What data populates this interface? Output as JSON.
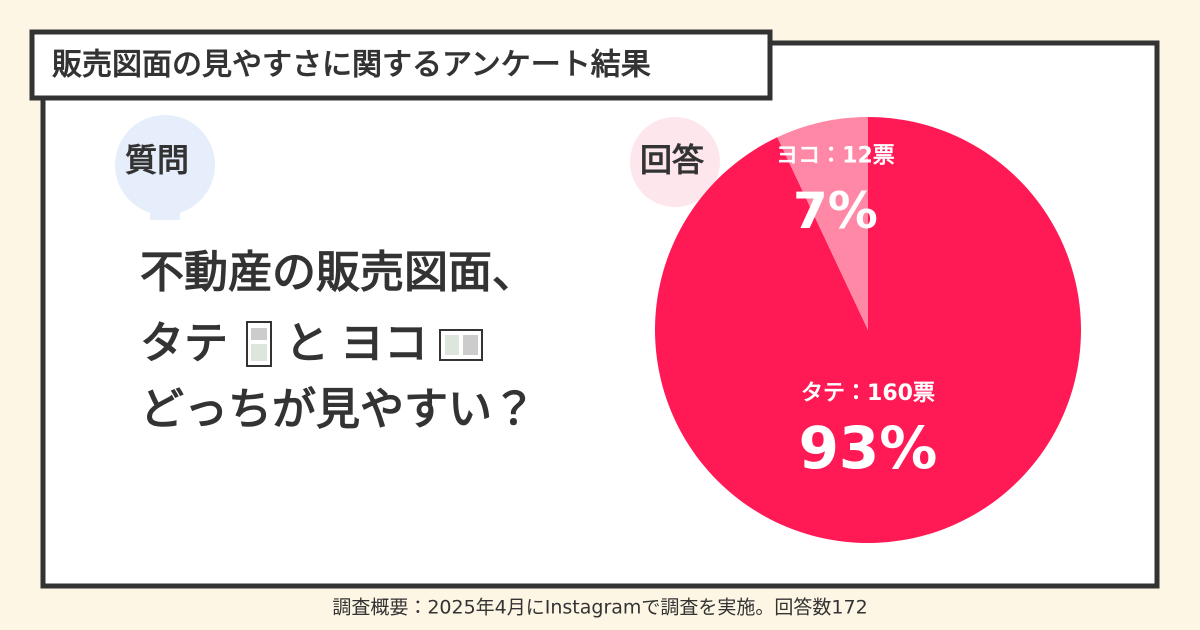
{
  "header": {
    "title": "販売図面の見やすさに関するアンケート結果"
  },
  "question": {
    "label": "質問",
    "lines": [
      "不動産の販売図面、",
      "タテ",
      "と",
      "ヨコ",
      "どっちが見やすい？"
    ]
  },
  "chart_data": {
    "type": "pie",
    "title": "回答",
    "categories": [
      "タテ",
      "ヨコ"
    ],
    "slice_labels": [
      "タテ：160票",
      "ヨコ：12票"
    ],
    "values": [
      93,
      7
    ],
    "value_labels": [
      "93%",
      "7%"
    ],
    "colors": [
      "#ff1a55",
      "#ff88a6"
    ]
  },
  "footer": {
    "note": "調査概要：2025年4月にInstagramで調査を実施。回答数172"
  }
}
